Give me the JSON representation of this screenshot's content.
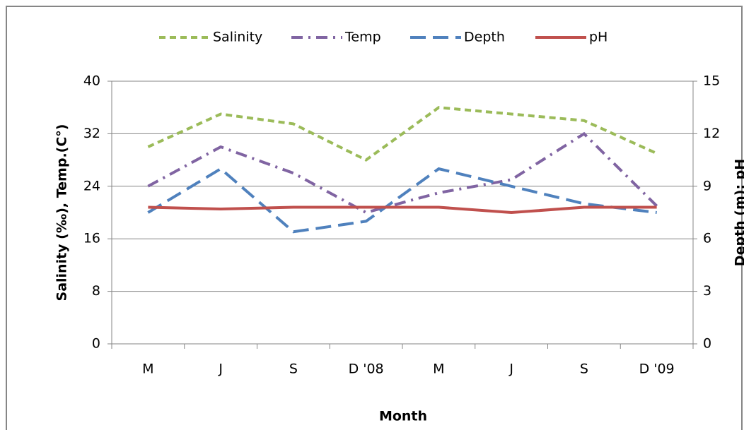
{
  "chart_data": {
    "type": "line",
    "x_label": "Month",
    "y_label": "Salinity (‰),  Temp.(C°)",
    "y2_label": "Depth (m); pH",
    "categories": [
      "M",
      "J",
      "S",
      "D '08",
      "M",
      "J",
      "S",
      "D '09"
    ],
    "ylim": [
      0,
      40
    ],
    "yticks": [
      0,
      8,
      16,
      24,
      32,
      40
    ],
    "y2lim": [
      0,
      15
    ],
    "y2ticks": [
      0,
      3,
      6,
      9,
      12,
      15
    ],
    "grid": true,
    "legend": "top",
    "series": [
      {
        "name": "Salinity",
        "color": "#9bbb59",
        "line_style": "dashed",
        "values": [
          30,
          35,
          33.5,
          28,
          36,
          35,
          34,
          29
        ]
      },
      {
        "name": "Temp",
        "color": "#8064a2",
        "line_style": "dash-dot",
        "values": [
          24,
          30,
          26,
          20,
          23,
          25,
          32,
          21
        ]
      },
      {
        "name": "Depth",
        "color": "#4f81bd",
        "line_style": "long-dash",
        "axis": "y2",
        "values": [
          7.5,
          10,
          6.4,
          7,
          10,
          9,
          8,
          7.5
        ]
      },
      {
        "name": "pH",
        "color": "#c0504d",
        "line_style": "solid",
        "axis": "y2",
        "values": [
          7.8,
          7.7,
          7.8,
          7.8,
          7.8,
          7.5,
          7.8,
          7.8
        ]
      }
    ]
  }
}
